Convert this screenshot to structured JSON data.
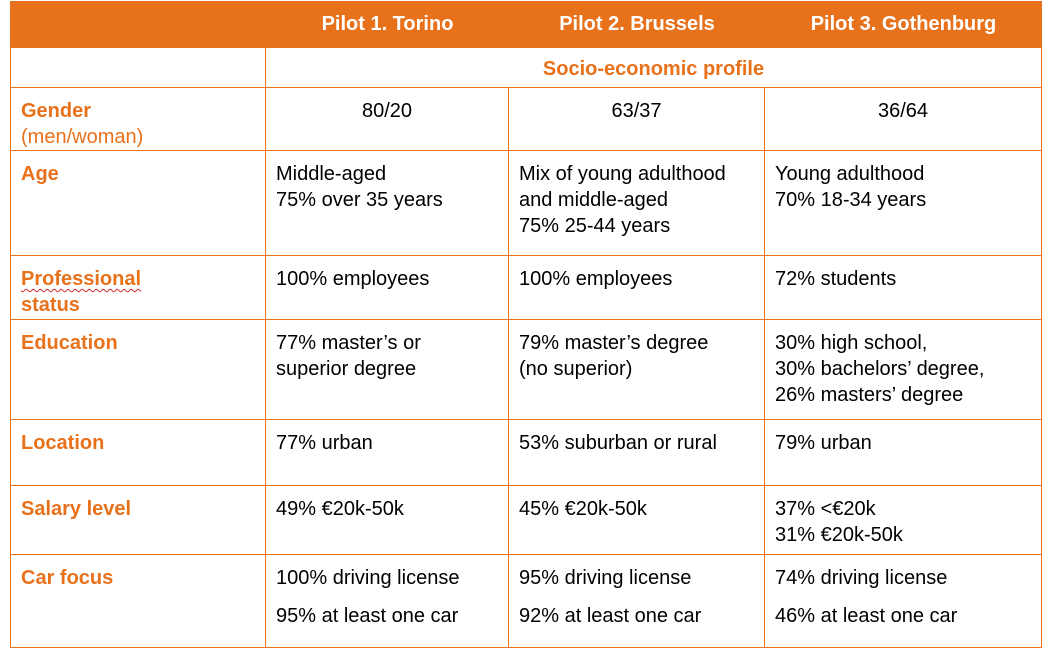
{
  "colors": {
    "accent": "#e8711b",
    "header_text": "#ffffff"
  },
  "header": {
    "blank": "",
    "col1": "Pilot 1. Torino",
    "col2": "Pilot 2. Brussels",
    "col3": "Pilot 3. Gothenburg"
  },
  "section_title": "Socio-economic profile",
  "rows": {
    "gender": {
      "label": "Gender",
      "note": "(men/woman)",
      "values": [
        "80/20",
        "63/37",
        "36/64"
      ]
    },
    "age": {
      "label": "Age",
      "values": [
        [
          "Middle-aged",
          "75% over 35 years"
        ],
        [
          "Mix of young adulthood",
          "and middle-aged",
          "75% 25-44 years"
        ],
        [
          "Young adulthood",
          "70% 18-34 years"
        ]
      ]
    },
    "professional": {
      "label_word1": "Professional",
      "label_word2": "status",
      "values": [
        "100% employees",
        "100% employees",
        "72% students"
      ]
    },
    "education": {
      "label": "Education",
      "values": [
        [
          "77% master’s or",
          "superior degree"
        ],
        [
          "79% master’s degree",
          "(no superior)"
        ],
        [
          "30% high school,",
          "30% bachelors’ degree,",
          "26% masters’ degree"
        ]
      ]
    },
    "location": {
      "label": "Location",
      "values": [
        "77% urban",
        "53% suburban or rural",
        "79% urban"
      ]
    },
    "salary": {
      "label": "Salary level",
      "values": [
        [
          "49% €20k-50k"
        ],
        [
          "45% €20k-50k"
        ],
        [
          "37% <€20k",
          "31% €20k-50k"
        ]
      ]
    },
    "car": {
      "label": "Car focus",
      "values": [
        [
          "100% driving license",
          "95% at least one car"
        ],
        [
          "95% driving license",
          "92% at least one car"
        ],
        [
          "74% driving license",
          "46% at least one car"
        ]
      ]
    }
  }
}
